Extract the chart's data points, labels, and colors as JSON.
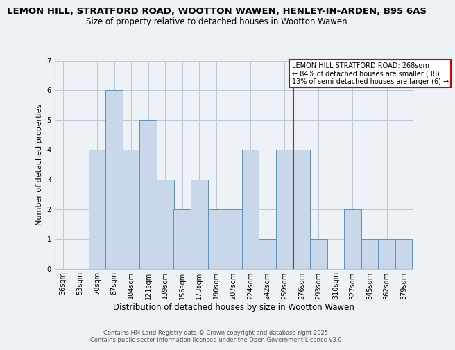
{
  "title": "LEMON HILL, STRATFORD ROAD, WOOTTON WAWEN, HENLEY-IN-ARDEN, B95 6AS",
  "subtitle": "Size of property relative to detached houses in Wootton Wawen",
  "xlabel": "Distribution of detached houses by size in Wootton Wawen",
  "ylabel": "Number of detached properties",
  "categories": [
    "36sqm",
    "53sqm",
    "70sqm",
    "87sqm",
    "104sqm",
    "121sqm",
    "139sqm",
    "156sqm",
    "173sqm",
    "190sqm",
    "207sqm",
    "224sqm",
    "242sqm",
    "259sqm",
    "276sqm",
    "293sqm",
    "310sqm",
    "327sqm",
    "345sqm",
    "362sqm",
    "379sqm"
  ],
  "values": [
    0,
    0,
    4,
    6,
    4,
    5,
    3,
    2,
    3,
    2,
    2,
    4,
    1,
    4,
    4,
    1,
    0,
    2,
    1,
    1,
    1
  ],
  "bar_color": "#c8d8ea",
  "bar_edge_color": "#6090b8",
  "bar_edge_width": 0.7,
  "grid_color": "#b8c8d8",
  "bg_color": "#eef2f7",
  "red_line_label": "LEMON HILL STRATFORD ROAD: 268sqm",
  "annotation_line1": "← 84% of detached houses are smaller (38)",
  "annotation_line2": "13% of semi-detached houses are larger (6) →",
  "annotation_box_color": "#ffffff",
  "annotation_border_color": "#cc0000",
  "footer_line1": "Contains HM Land Registry data © Crown copyright and database right 2025.",
  "footer_line2": "Contains public sector information licensed under the Open Government Licence v3.0.",
  "ylim": [
    0,
    7
  ],
  "yticks": [
    0,
    1,
    2,
    3,
    4,
    5,
    6,
    7
  ],
  "title_fontsize": 9.5,
  "subtitle_fontsize": 8.5,
  "xlabel_fontsize": 8.5,
  "ylabel_fontsize": 8.0,
  "tick_fontsize": 7,
  "footer_fontsize": 6,
  "annot_fontsize": 7
}
